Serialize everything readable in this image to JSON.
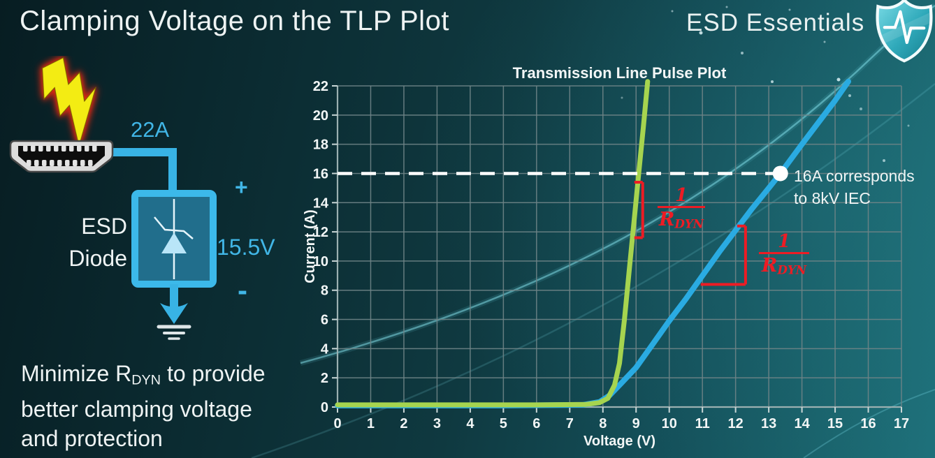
{
  "header": {
    "title": "Clamping Voltage on the TLP Plot",
    "brand": "ESD Essentials"
  },
  "diagram": {
    "surge_current": "22A",
    "device_line1": "ESD",
    "device_line2": "Diode",
    "clamp_voltage": "15.5V",
    "polarity_plus": "+",
    "polarity_minus": "-",
    "icons": [
      "lightning-icon",
      "hdmi-connector-icon",
      "esd-diode-box",
      "zener-diode-symbol-icon",
      "ground-icon",
      "shield-pulse-logo-icon"
    ]
  },
  "note": {
    "line1_prefix": "Minimize R",
    "line1_sub": "DYN",
    "line1_suffix": " to provide",
    "line2": "better clamping voltage",
    "line3": "and protection"
  },
  "chart_data": {
    "type": "line",
    "title": "Transmission Line Pulse Plot",
    "xlabel": "Voltage (V)",
    "ylabel": "Current (A)",
    "xlim": [
      0,
      17
    ],
    "ylim": [
      0,
      22
    ],
    "x_ticks": [
      0,
      1,
      2,
      3,
      4,
      5,
      6,
      7,
      8,
      9,
      10,
      11,
      12,
      13,
      14,
      15,
      16,
      17
    ],
    "y_ticks": [
      0,
      2,
      4,
      6,
      8,
      10,
      12,
      14,
      16,
      18,
      20,
      22
    ],
    "grid": true,
    "legend": "none",
    "colors": {
      "grid": "#6f8487",
      "frame": "#9bb0b1",
      "tick": "#c9d6d6",
      "dashed_line": "#ffffff",
      "marker": "#ffffff",
      "annotation_red": "#ed1c24"
    },
    "series": [
      {
        "name": "blue-curve-higher-rdyn",
        "color": "#2aabe2",
        "points": [
          [
            0,
            0.1
          ],
          [
            5,
            0.1
          ],
          [
            7.4,
            0.15
          ],
          [
            7.9,
            0.35
          ],
          [
            8.2,
            0.8
          ],
          [
            8.5,
            1.5
          ],
          [
            9,
            2.7
          ],
          [
            9.5,
            4.3
          ],
          [
            10,
            5.9
          ],
          [
            10.5,
            7.4
          ],
          [
            11,
            9
          ],
          [
            11.5,
            10.6
          ],
          [
            12,
            12.1
          ],
          [
            12.5,
            13.6
          ],
          [
            13,
            15
          ],
          [
            13.35,
            16
          ],
          [
            14,
            18
          ],
          [
            14.5,
            19.5
          ],
          [
            15,
            21
          ],
          [
            15.4,
            22.3
          ]
        ]
      },
      {
        "name": "green-curve-lower-rdyn",
        "color": "#a6d44f",
        "points": [
          [
            0,
            0.15
          ],
          [
            6,
            0.15
          ],
          [
            7.5,
            0.18
          ],
          [
            7.9,
            0.3
          ],
          [
            8.15,
            0.6
          ],
          [
            8.35,
            1.5
          ],
          [
            8.5,
            3
          ],
          [
            8.65,
            6
          ],
          [
            8.8,
            9.5
          ],
          [
            8.95,
            13
          ],
          [
            9.08,
            16
          ],
          [
            9.22,
            19.2
          ],
          [
            9.35,
            22.3
          ]
        ]
      }
    ],
    "reference_line": {
      "y": 16,
      "x_start": 0,
      "x_end": 13.35,
      "style": "dashed",
      "color": "#ffffff"
    },
    "marker": {
      "x": 13.35,
      "y": 16,
      "color": "#ffffff",
      "label_line1": "16A corresponds",
      "label_line2": "to 8kV IEC"
    },
    "slope_annotations": [
      {
        "target": "green-curve",
        "numerator": "1",
        "denominator_base": "R",
        "denominator_sub": "DYN",
        "shape": "bracket",
        "x": 9.2,
        "y_top": 15.4,
        "y_bottom": 11.6
      },
      {
        "target": "blue-curve",
        "numerator": "1",
        "denominator_base": "R",
        "denominator_sub": "DYN",
        "shape": "right-angle",
        "x": 12.3,
        "y_top": 12.4,
        "y_bottom": 8.4,
        "x_left": 10.95
      }
    ]
  }
}
